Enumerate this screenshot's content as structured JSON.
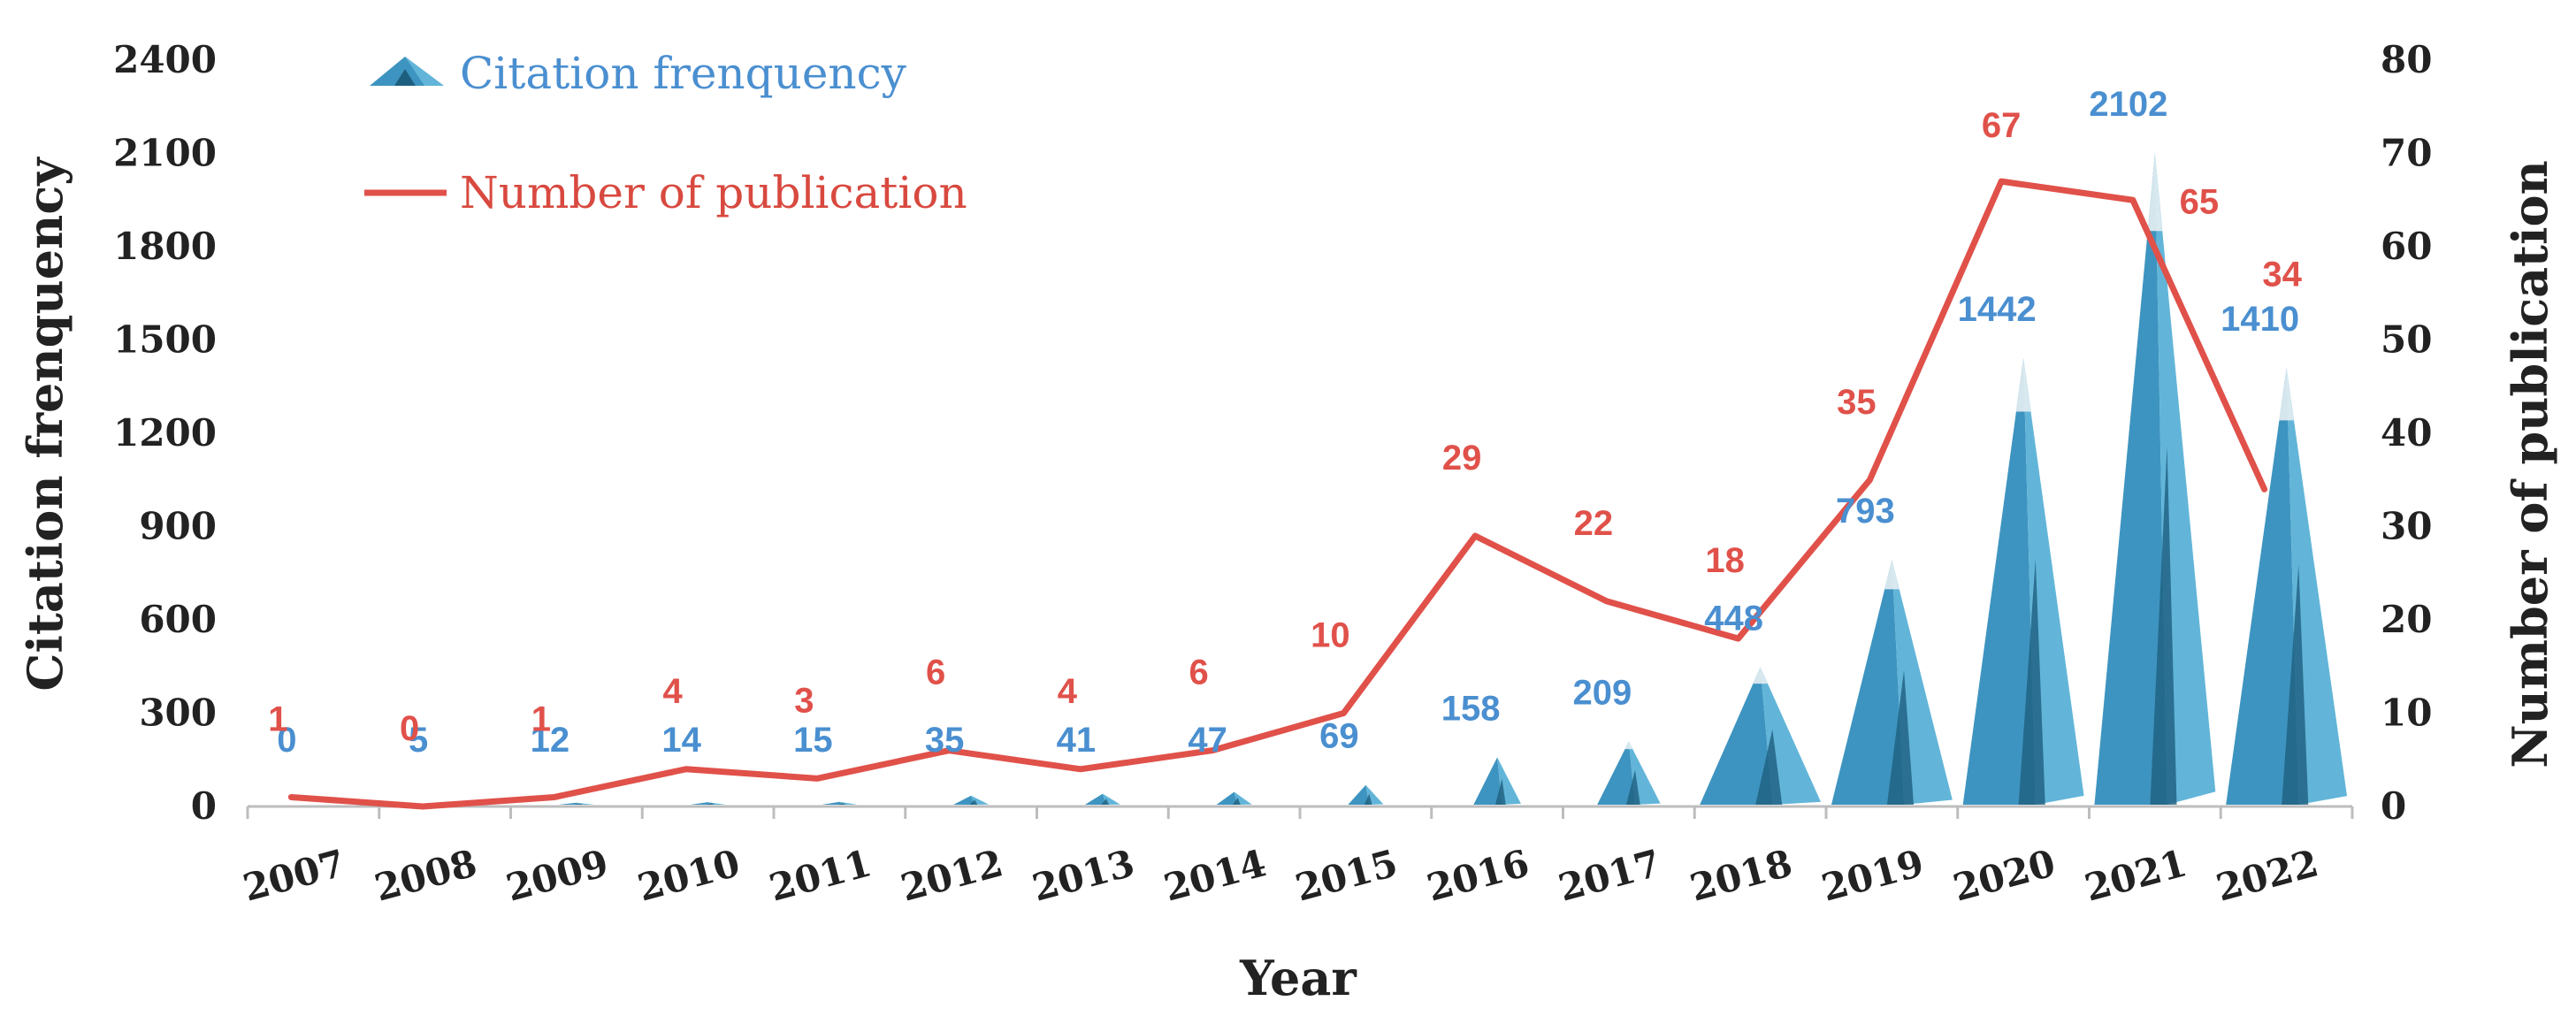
{
  "chart_data": {
    "type": "bar",
    "categories": [
      "2007",
      "2008",
      "2009",
      "2010",
      "2011",
      "2012",
      "2013",
      "2014",
      "2015",
      "2016",
      "2017",
      "2018",
      "2019",
      "2020",
      "2021",
      "2022"
    ],
    "series": [
      {
        "name": "Citation frenquency",
        "axis": "left",
        "mark": "cone",
        "values": [
          0,
          5,
          12,
          14,
          15,
          35,
          41,
          47,
          69,
          158,
          209,
          448,
          793,
          1442,
          2102,
          1410
        ],
        "labels": [
          "0",
          "5",
          "12",
          "14",
          "15",
          "35",
          "41",
          "47",
          "69",
          "158",
          "209",
          "448",
          "793",
          "1442",
          "2102",
          "1410"
        ]
      },
      {
        "name": "Number of publication",
        "axis": "right",
        "mark": "line",
        "values": [
          1,
          0,
          1,
          4,
          3,
          6,
          4,
          6,
          10,
          29,
          22,
          18,
          35,
          67,
          65,
          34
        ],
        "labels": [
          "1",
          "0",
          "1",
          "4",
          "3",
          "6",
          "4",
          "6",
          "10",
          "29",
          "22",
          "18",
          "35",
          "67",
          "65",
          "34"
        ]
      }
    ],
    "xlabel": "Year",
    "ylabel": "Citation frenquency",
    "y2label": "Number of publication",
    "ylim": [
      0,
      2400
    ],
    "y2lim": [
      0,
      80
    ],
    "yticks": [
      "0",
      "300",
      "600",
      "900",
      "1200",
      "1500",
      "1800",
      "2100",
      "2400"
    ],
    "y2ticks": [
      "0",
      "10",
      "20",
      "30",
      "40",
      "50",
      "60",
      "70",
      "80"
    ],
    "grid": false,
    "legend_position": "top-left",
    "colors": {
      "citation": "#3e94c0",
      "citation_light": "#62b5d9",
      "citation_dark": "#1e5f80",
      "publication": "#e0514a",
      "citation_label": "#4a8fd0"
    }
  }
}
